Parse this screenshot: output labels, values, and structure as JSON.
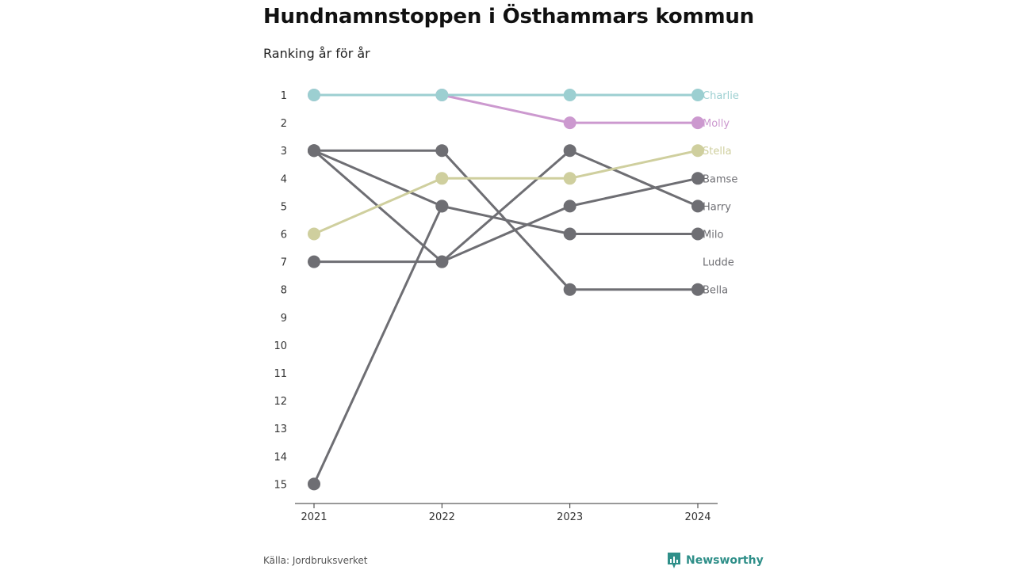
{
  "header": {
    "title": "Hundnamnstoppen i Östhammars kommun",
    "subtitle": "Ranking år för år"
  },
  "footer": {
    "source": "Källa: Jordbruksverket",
    "brand": "Newsworthy"
  },
  "colors": {
    "Charlie": "#9ccfd1",
    "Molly": "#cc99cf",
    "Stella": "#cfcf9e",
    "default": "#6e6e73",
    "axis": "#333333",
    "brand": "#2f8f89"
  },
  "chart_data": {
    "type": "line",
    "subtype": "bump",
    "title": "Hundnamnstoppen i Östhammars kommun",
    "subtitle": "Ranking år för år",
    "x": [
      "2021",
      "2022",
      "2023",
      "2024"
    ],
    "y_ticks": [
      1,
      2,
      3,
      4,
      5,
      6,
      7,
      8,
      9,
      10,
      11,
      12,
      13,
      14,
      15
    ],
    "y_reversed": true,
    "ylim": [
      1,
      15
    ],
    "grid": false,
    "legend": "direct labels at right end of lines",
    "series": [
      {
        "name": "Bella",
        "values": [
          3,
          3,
          8,
          8
        ]
      },
      {
        "name": "Milo",
        "values": [
          3,
          5,
          6,
          6
        ]
      },
      {
        "name": "Harry",
        "values": [
          3,
          7,
          3,
          5
        ]
      },
      {
        "name": "Bamse",
        "values": [
          7,
          7,
          5,
          4
        ]
      },
      {
        "name": "Ludde",
        "values": [
          15,
          5,
          null,
          null
        ]
      },
      {
        "name": "Stella",
        "values": [
          6,
          4,
          4,
          3
        ]
      },
      {
        "name": "Molly",
        "values": [
          1,
          1,
          2,
          2
        ]
      },
      {
        "name": "Charlie",
        "values": [
          1,
          1,
          1,
          1
        ]
      }
    ]
  }
}
